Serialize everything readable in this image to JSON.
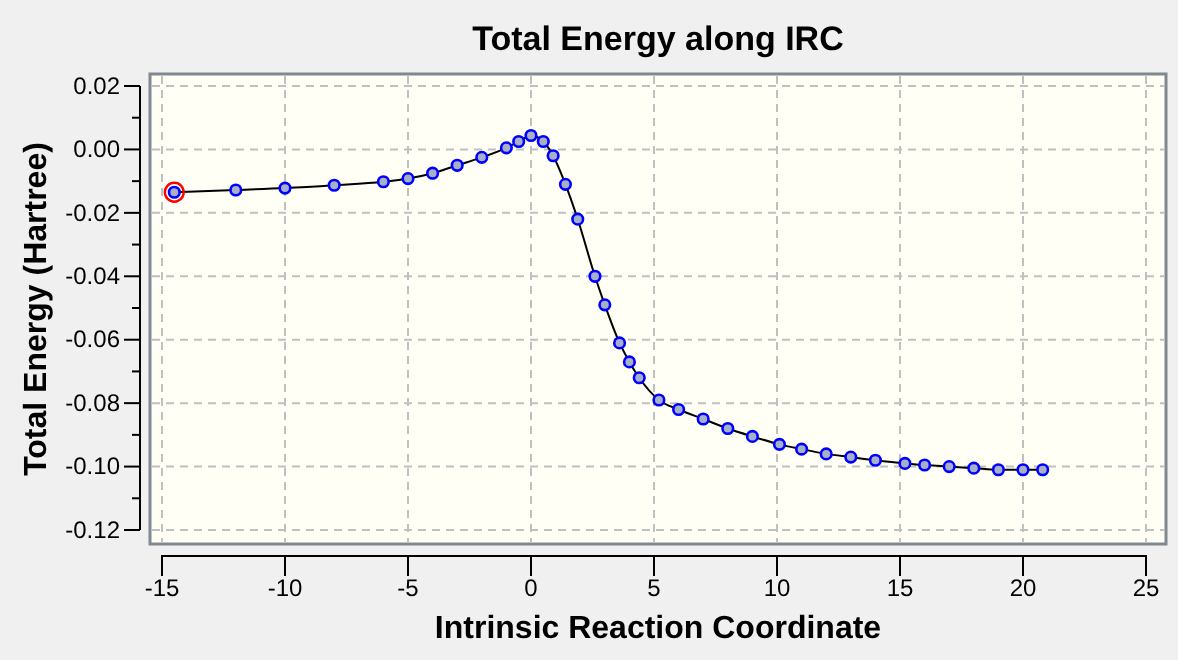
{
  "chart_data": {
    "type": "line",
    "title": "Total Energy along IRC",
    "xlabel": "Intrinsic Reaction Coordinate",
    "ylabel": "Total Energy (Hartree)",
    "xlim": [
      -15,
      25
    ],
    "ylim": [
      -0.12,
      0.02
    ],
    "xticks": [
      -15,
      -10,
      -5,
      0,
      5,
      10,
      15,
      20,
      25
    ],
    "yticks": [
      {
        "value": 0.02,
        "label": "0.02"
      },
      {
        "value": 0.01,
        "label": null
      },
      {
        "value": 0,
        "label": "0.00"
      },
      {
        "value": -0.01,
        "label": null
      },
      {
        "value": -0.02,
        "label": "-0.02"
      },
      {
        "value": -0.03,
        "label": null
      },
      {
        "value": -0.04,
        "label": "-0.04"
      },
      {
        "value": -0.05,
        "label": null
      },
      {
        "value": -0.06,
        "label": "-0.06"
      },
      {
        "value": -0.07,
        "label": null
      },
      {
        "value": -0.08,
        "label": "-0.08"
      },
      {
        "value": -0.09,
        "label": null
      },
      {
        "value": -0.1,
        "label": "-0.10"
      },
      {
        "value": -0.11,
        "label": null
      },
      {
        "value": -0.12,
        "label": "-0.12"
      }
    ],
    "grid": true,
    "marker": "circle",
    "line_style": "solid",
    "series": [
      {
        "color": "#0000ff",
        "x": [
          -14.5,
          -12,
          -10,
          -8,
          -6,
          -5,
          -4,
          -3,
          -2,
          -1,
          -0.5,
          0,
          0.5,
          0.9,
          1.4,
          1.9,
          2.6,
          3.0,
          3.6,
          4.0,
          4.4,
          5.2,
          6,
          7,
          8,
          9,
          10.1,
          11,
          12,
          13,
          14,
          15.2,
          16,
          17,
          18,
          19,
          20,
          20.8
        ],
        "values": [
          -0.0135,
          -0.0128,
          -0.0122,
          -0.0113,
          -0.0102,
          -0.0092,
          -0.0075,
          -0.005,
          -0.0025,
          0.0005,
          0.0025,
          0.0044,
          0.0025,
          -0.002,
          -0.011,
          -0.022,
          -0.04,
          -0.049,
          -0.061,
          -0.067,
          -0.072,
          -0.079,
          -0.082,
          -0.085,
          -0.088,
          -0.0905,
          -0.093,
          -0.0945,
          -0.096,
          -0.097,
          -0.098,
          -0.099,
          -0.0995,
          -0.1,
          -0.1005,
          -0.101,
          -0.101,
          -0.101
        ]
      },
      {
        "type": "scatter",
        "color": "#ff0000",
        "x": [
          -14.5
        ],
        "values": [
          -0.0135
        ]
      }
    ]
  }
}
